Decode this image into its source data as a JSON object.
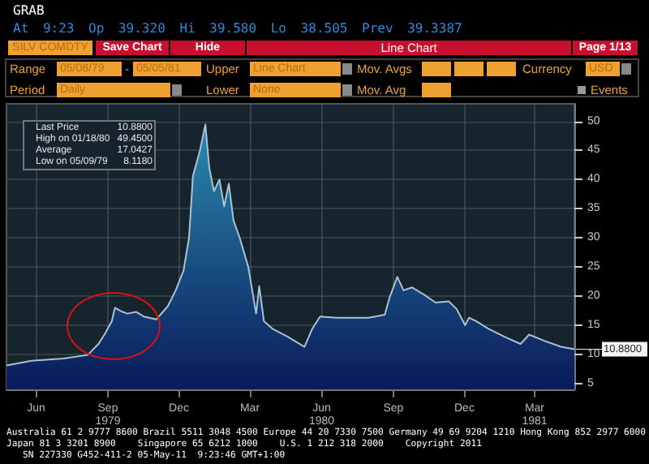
{
  "chart_data": {
    "type": "area",
    "title": "GRAB",
    "subtitle": "At 9:23 Op 39.320 Hi 39.580 Lo 38.505 Prev 39.3387",
    "x": [
      "1979-05-08",
      "1979-06-09",
      "1979-07-20",
      "1979-08-20",
      "1979-09-03",
      "1979-09-11",
      "1979-09-20",
      "1979-09-24",
      "1979-10-02",
      "1979-10-10",
      "1979-10-21",
      "1979-10-31",
      "1979-11-16",
      "1979-12-01",
      "1979-12-11",
      "1979-12-21",
      "1979-12-28",
      "1980-01-02",
      "1980-01-11",
      "1980-01-18",
      "1980-01-23",
      "1980-01-29",
      "1980-02-05",
      "1980-02-11",
      "1980-02-17",
      "1980-02-23",
      "1980-03-02",
      "1980-03-13",
      "1980-03-23",
      "1980-03-27",
      "1980-04-02",
      "1980-04-13",
      "1980-05-03",
      "1980-05-24",
      "1980-06-03",
      "1980-06-13",
      "1980-07-04",
      "1980-08-14",
      "1980-09-04",
      "1980-09-10",
      "1980-09-20",
      "1980-09-28",
      "1980-10-09",
      "1980-10-25",
      "1980-11-08",
      "1980-11-25",
      "1980-12-05",
      "1980-12-16",
      "1980-12-21",
      "1980-12-30",
      "1981-01-15",
      "1981-02-05",
      "1981-02-25",
      "1981-03-08",
      "1981-03-28",
      "1981-04-18",
      "1981-05-05"
    ],
    "series": [
      {
        "color": "#a9c3d3",
        "values": [
          8.1,
          8.9,
          9.3,
          9.9,
          11.8,
          13.5,
          15.7,
          18,
          17.4,
          17,
          17.3,
          16.5,
          16,
          18.3,
          21,
          24.4,
          30,
          40.6,
          45,
          49.45,
          42,
          38,
          40,
          35.4,
          39.3,
          33,
          30,
          25,
          17,
          21.7,
          15.7,
          14.4,
          13,
          11.3,
          14.4,
          16.5,
          16.3,
          16.3,
          16.8,
          19.7,
          23.3,
          21,
          21.5,
          20.2,
          18.9,
          19.1,
          17.8,
          15,
          16.3,
          15.7,
          14.4,
          13,
          11.8,
          13.4,
          12.3,
          11.3,
          10.88
        ]
      }
    ],
    "xlim": [
      "1979-05-08",
      "1981-05-05"
    ],
    "xticks": [
      {
        "value": "1979-06-15",
        "label": "Jun"
      },
      {
        "value": "1979-09-15",
        "label": "Sep\n1979"
      },
      {
        "value": "1979-12-15",
        "label": "Dec"
      },
      {
        "value": "1980-03-15",
        "label": "Mar"
      },
      {
        "value": "1980-06-15",
        "label": "Jun\n1980"
      },
      {
        "value": "1980-09-15",
        "label": "Sep"
      },
      {
        "value": "1980-12-15",
        "label": "Dec"
      },
      {
        "value": "1981-03-15",
        "label": "Mar\n1981"
      }
    ],
    "ylim": [
      4,
      53
    ],
    "yticks": [
      5,
      10,
      15,
      20,
      25,
      30,
      35,
      40,
      45,
      50
    ],
    "grid": true,
    "marker": "none",
    "annotations": [
      "SILV COMDTY",
      "Save Chart",
      "Hide",
      "Line Chart",
      "Page 1/13",
      "Range",
      "05/08/79",
      "-",
      "05/05/81",
      "Upper",
      "Line Chart",
      "Mov. Avgs",
      "Currency",
      "USD",
      "Period",
      "Daily",
      "Lower",
      "None",
      "Mov. Avg",
      "Events",
      "Last Price",
      "10.8800",
      "High on 01/18/80",
      "49.4500",
      "Average",
      "17.0427",
      "Low on 05/09/79",
      "8.1180",
      {
        "text": "10.8800",
        "x": "1981-05-05",
        "y": 10.88
      },
      "Australia 61 2 9777 8600 Brazil 5511 3048 4500 Europe 44 20 7330 7500 Germany 49 69 9204 1210 Hong Kong 852 2977 6000",
      "Japan 81 3 3201 8900    Singapore 65 6212 1000    U.S. 1 212 318 2000    Copyright 2011",
      "SN 227330 G452-411-2 05-May-11  9:23:46 GMT+1:00"
    ]
  }
}
